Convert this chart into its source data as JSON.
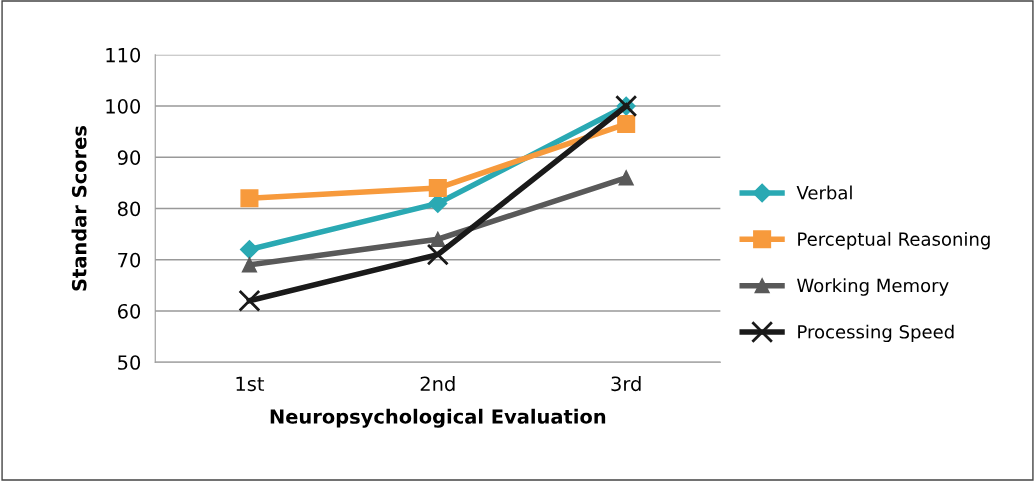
{
  "chart_data": {
    "type": "line",
    "xlabel": "Neuropsychological Evaluation",
    "ylabel": "Standar Scores",
    "categories": [
      "1st",
      "2nd",
      "3rd"
    ],
    "series": [
      {
        "name": "Verbal",
        "color": "#2aa9b3",
        "marker": "diamond",
        "values": [
          72,
          81,
          100
        ]
      },
      {
        "name": "Perceptual Reasoning",
        "color": "#f79a3c",
        "marker": "square",
        "values": [
          82,
          84,
          96.5
        ]
      },
      {
        "name": "Working Memory",
        "color": "#595959",
        "marker": "triangle",
        "values": [
          69,
          74,
          86
        ]
      },
      {
        "name": "Processing Speed",
        "color": "#1a1a1a",
        "marker": "cross",
        "values": [
          62,
          71,
          100
        ]
      }
    ],
    "ylim": [
      50,
      110
    ],
    "yticks": [
      50,
      60,
      70,
      80,
      90,
      100,
      110
    ],
    "grid": "y",
    "legend": "right",
    "line_style": "solid"
  }
}
